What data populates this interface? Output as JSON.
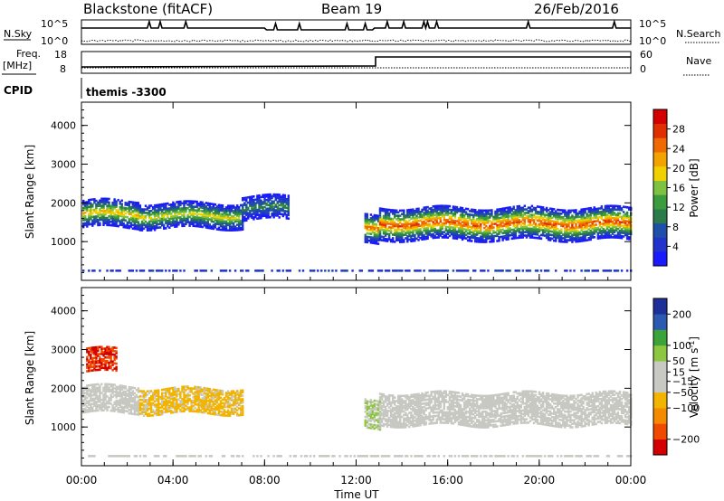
{
  "header": {
    "station": "Blackstone (fitACF)",
    "beam": "Beam 19",
    "date": "26/Feb/2016"
  },
  "top_panels": {
    "nsky_label": "N.Sky",
    "nsearch_label": "N.Search",
    "freq_label_line1": "Freq.",
    "freq_label_line2": "[MHz]",
    "nave_label": "Nave",
    "cpid_label": "CPID",
    "cpid_value": "themis -3300",
    "noise_ticks": [
      "10^5",
      "10^0"
    ],
    "freq_ticks": [
      "18",
      "8"
    ],
    "nave_ticks": [
      "60",
      "0"
    ]
  },
  "colors": {
    "power_scale": [
      "#1a1aff",
      "#2233cc",
      "#1f4fa8",
      "#2a7a4a",
      "#3c9b3c",
      "#7fc241",
      "#f0d000",
      "#f3a300",
      "#ef6a00",
      "#e03000",
      "#d40000"
    ],
    "velocity_scale": [
      "#d40000",
      "#ef4a00",
      "#f38a00",
      "#f3b400",
      "#c9c9c4",
      "#c9c9c4",
      "#8dc63f",
      "#3aa33a",
      "#2b5ab0",
      "#1f2f9a"
    ],
    "ground_scatter": "#c8c8c2"
  },
  "chart_data": [
    {
      "type": "heatmap",
      "name": "power",
      "title": "",
      "xlabel": "",
      "ylabel": "Slant Range [km]",
      "xlim": [
        0,
        24
      ],
      "ylim": [
        0,
        4600
      ],
      "xticks": [
        "00:00",
        "04:00",
        "08:00",
        "12:00",
        "16:00",
        "20:00",
        "00:00"
      ],
      "yticks": [
        1000,
        2000,
        3000,
        4000
      ],
      "colorbar": {
        "label": "Power [dB]",
        "range": [
          0,
          32
        ],
        "ticks": [
          4,
          8,
          12,
          16,
          20,
          24,
          28
        ]
      },
      "regions": [
        {
          "t0": 0.0,
          "t1": 2.5,
          "center_km": 1700,
          "width_km": 350,
          "peak_db": 20
        },
        {
          "t0": 2.5,
          "t1": 7.0,
          "center_km": 1650,
          "width_km": 320,
          "peak_db": 18
        },
        {
          "t0": 7.0,
          "t1": 9.0,
          "center_km": 1850,
          "width_km": 300,
          "peak_db": 10
        },
        {
          "t0": 12.3,
          "t1": 13.0,
          "center_km": 1300,
          "width_km": 380,
          "peak_db": 24
        },
        {
          "t0": 13.0,
          "t1": 24.0,
          "center_km": 1450,
          "width_km": 420,
          "peak_db": 26
        }
      ]
    },
    {
      "type": "heatmap",
      "name": "velocity",
      "title": "",
      "xlabel": "Time UT",
      "ylabel": "Slant Range [km]",
      "xlim": [
        0,
        24
      ],
      "ylim": [
        0,
        4600
      ],
      "xticks": [
        "00:00",
        "04:00",
        "08:00",
        "12:00",
        "16:00",
        "20:00",
        "00:00"
      ],
      "yticks": [
        1000,
        2000,
        3000,
        4000
      ],
      "colorbar": {
        "label": "Velocity [m s^-1]",
        "range": [
          -250,
          250
        ],
        "ticks": [
          200,
          100,
          50,
          15,
          -15,
          -50,
          -100,
          -200
        ]
      },
      "regions": [
        {
          "t0": 0.0,
          "t1": 2.5,
          "center_km": 1700,
          "width_km": 350,
          "velocity": 0
        },
        {
          "t0": 2.5,
          "t1": 7.0,
          "center_km": 1650,
          "width_km": 320,
          "velocity": -60
        },
        {
          "t0": 0.2,
          "t1": 1.5,
          "center_km": 2700,
          "width_km": 300,
          "velocity": -200
        },
        {
          "t0": 12.3,
          "t1": 13.0,
          "center_km": 1300,
          "width_km": 380,
          "velocity": 50
        },
        {
          "t0": 13.0,
          "t1": 24.0,
          "center_km": 1450,
          "width_km": 420,
          "velocity": 0
        }
      ]
    }
  ]
}
